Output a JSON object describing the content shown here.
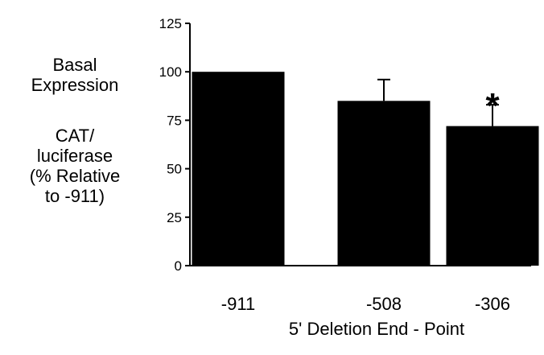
{
  "chart_data": {
    "type": "bar",
    "categories": [
      "-911",
      "-508",
      "-306"
    ],
    "values": [
      100,
      85,
      72
    ],
    "error": [
      0,
      11,
      11
    ],
    "annotations": [
      {
        "category": "-306",
        "text": "*"
      }
    ],
    "ylabel_lines": [
      "Basal",
      "Expression",
      "CAT/",
      "luciferase",
      "(% Relative",
      "to -911)"
    ],
    "xlabel": "5' Deletion End - Point",
    "ylim": [
      0,
      125
    ],
    "yticks": [
      0,
      25,
      50,
      75,
      100,
      125
    ],
    "bar_color": "#000000",
    "grid": false
  }
}
